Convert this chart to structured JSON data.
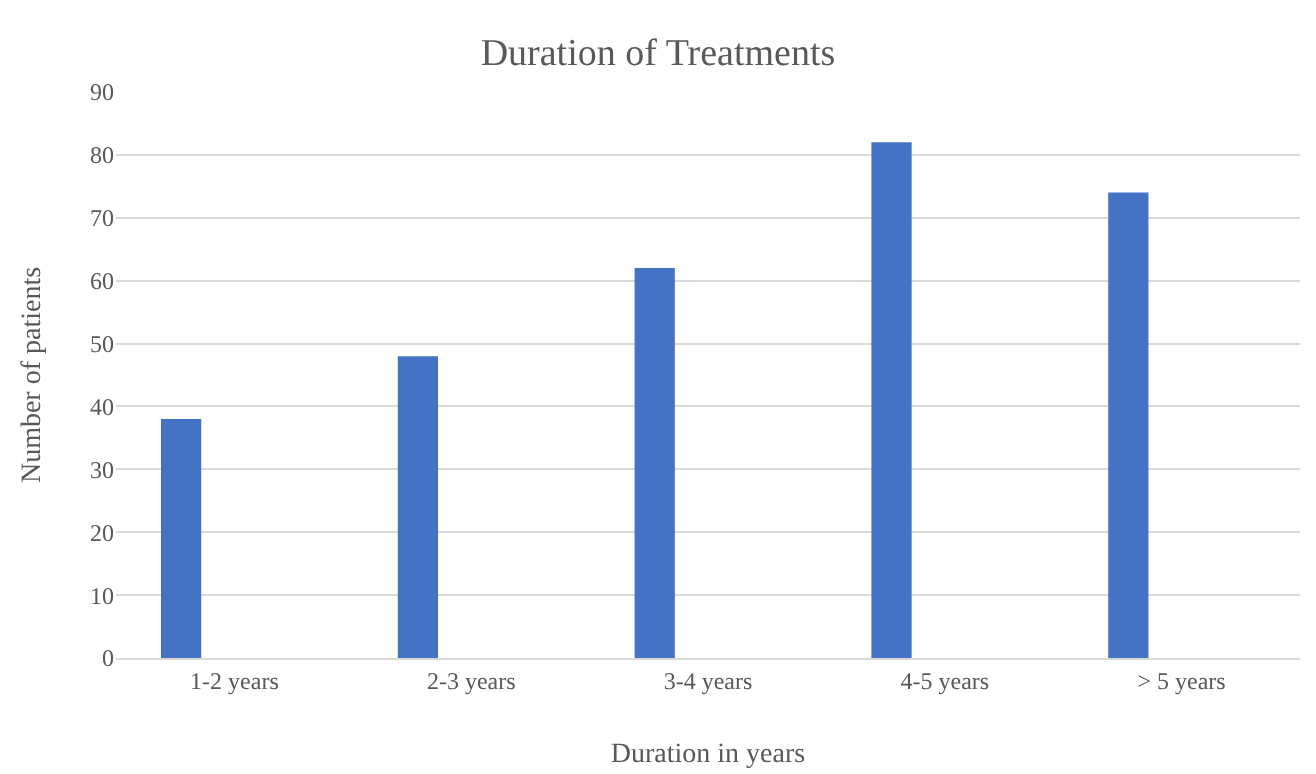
{
  "chart_data": {
    "type": "bar",
    "title": "Duration of Treatments",
    "xlabel": "Duration in years",
    "ylabel": "Number of patients",
    "categories": [
      "1-2 years",
      "2-3 years",
      "3-4 years",
      "4-5 years",
      "> 5 years"
    ],
    "values": [
      38,
      48,
      62,
      82,
      74
    ],
    "color": "#4472c4",
    "ylim": [
      0,
      90
    ],
    "yticks": [
      0,
      10,
      20,
      30,
      40,
      50,
      60,
      70,
      80,
      90
    ],
    "grid": "y"
  }
}
